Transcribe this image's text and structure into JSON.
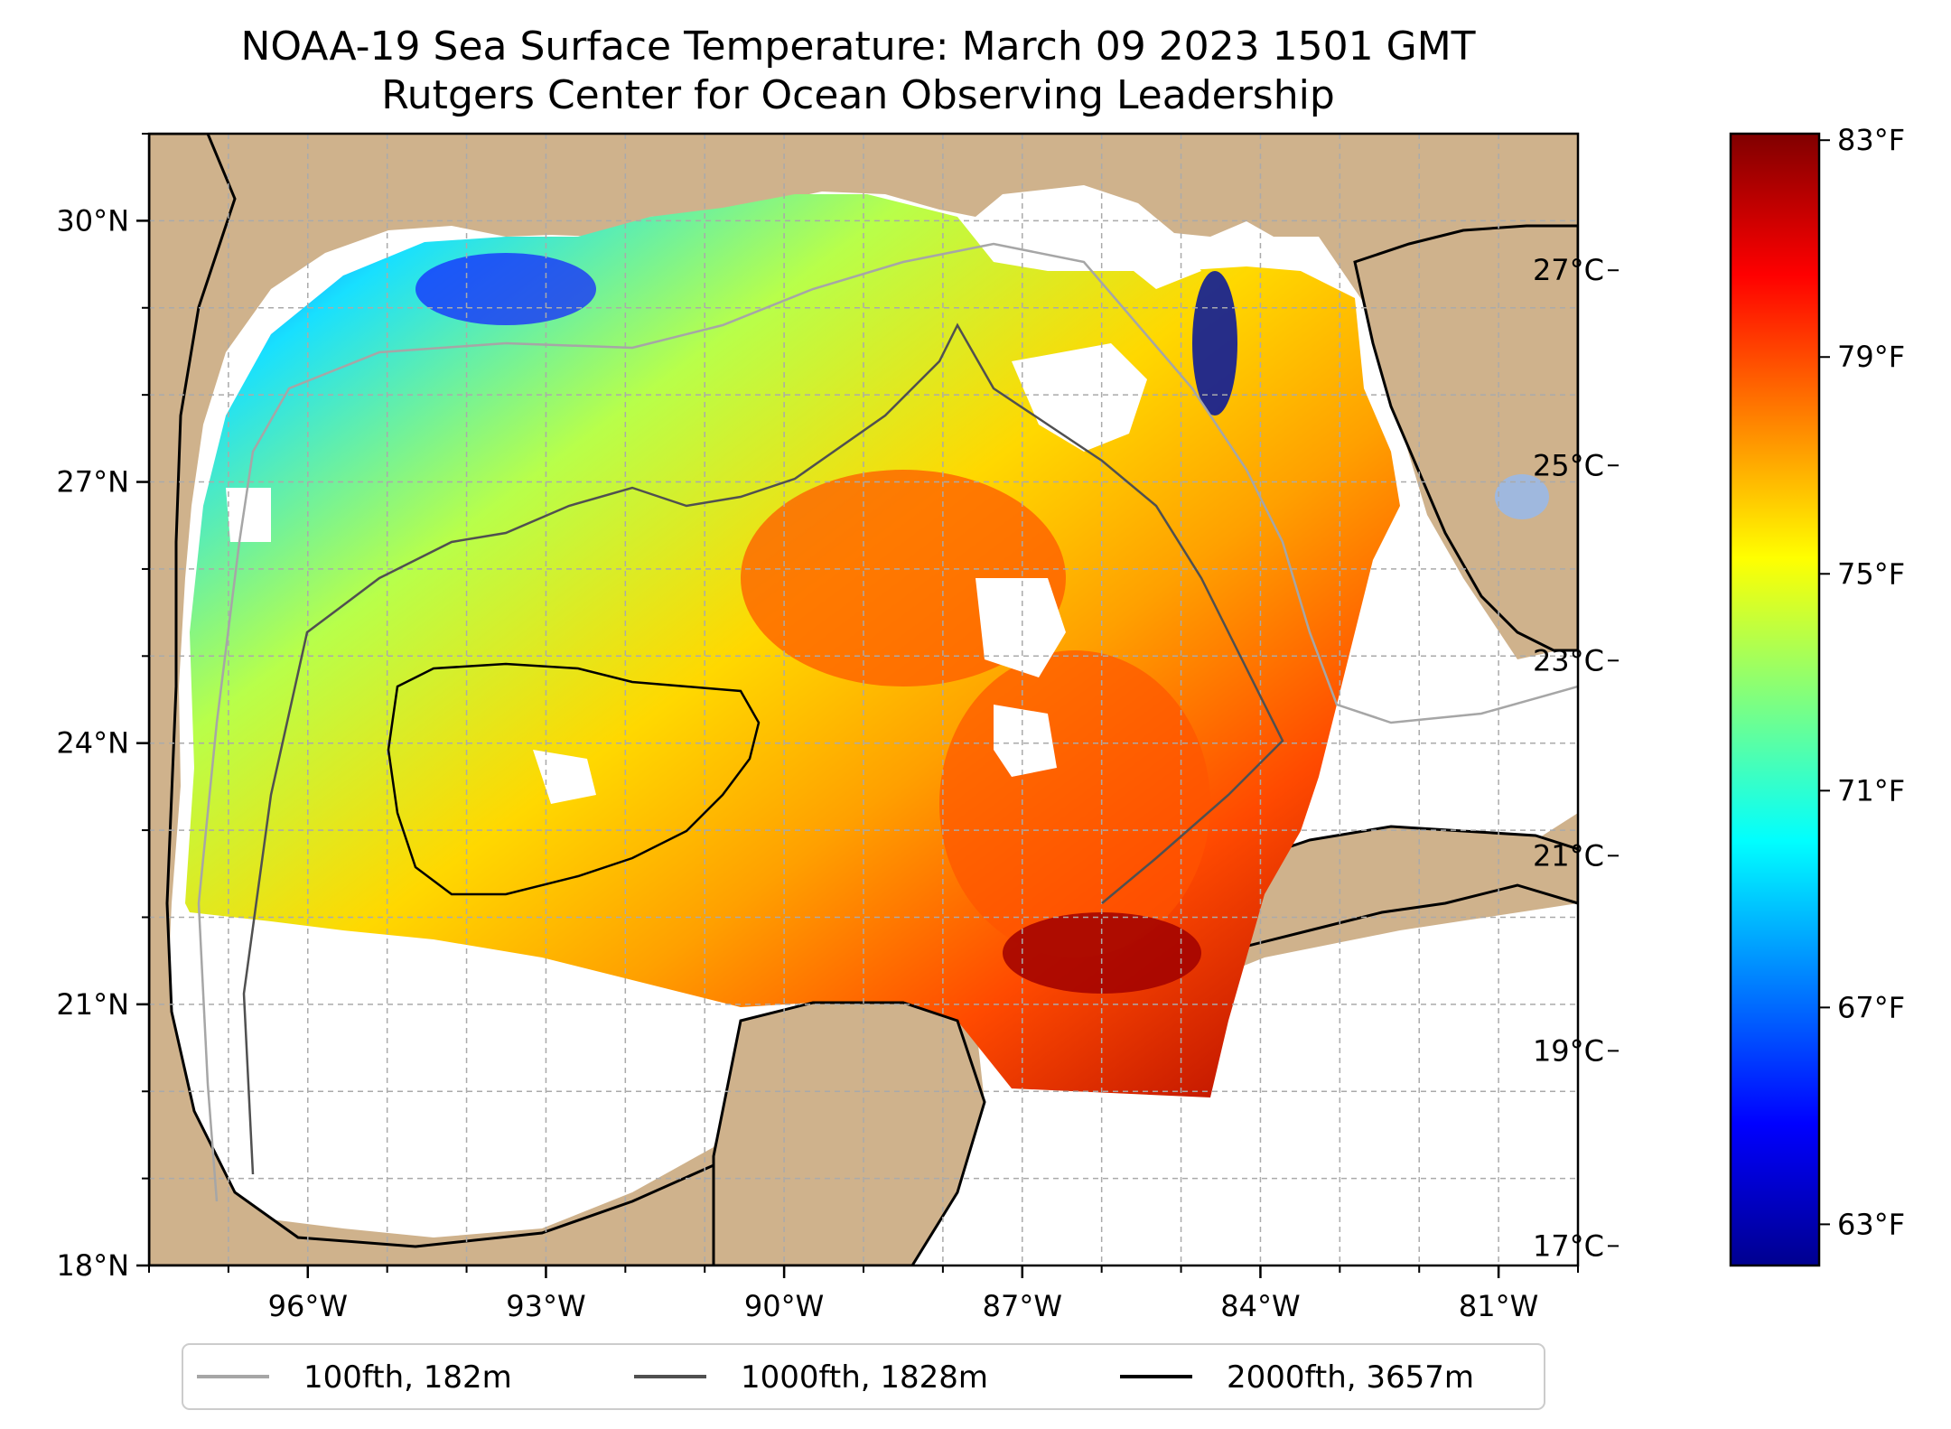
{
  "title": {
    "line1": "NOAA-19 Sea Surface Temperature: March 09 2023 1501 GMT",
    "line2": "Rutgers Center for Ocean Observing Leadership"
  },
  "map": {
    "lon_range": [
      -98,
      -80
    ],
    "lat_range": [
      18,
      31
    ],
    "lon_ticks": [
      {
        "value": -96,
        "label": "96°W"
      },
      {
        "value": -93,
        "label": "93°W"
      },
      {
        "value": -90,
        "label": "90°W"
      },
      {
        "value": -87,
        "label": "87°W"
      },
      {
        "value": -84,
        "label": "84°W"
      },
      {
        "value": -81,
        "label": "81°W"
      }
    ],
    "lat_ticks": [
      {
        "value": 30,
        "label": "30°N"
      },
      {
        "value": 27,
        "label": "27°N"
      },
      {
        "value": 24,
        "label": "24°N"
      },
      {
        "value": 21,
        "label": "21°N"
      },
      {
        "value": 18,
        "label": "18°N"
      }
    ],
    "grid": true,
    "colors": {
      "land": "#cfb28c",
      "lakes": "#9fb8de",
      "ocean_nodata": "#ffffff",
      "coastline": "#000000",
      "grid": "#aaaaaa"
    }
  },
  "colorbar": {
    "colormap": "jet",
    "celsius_range": [
      16.8,
      28.4
    ],
    "celsius_ticks": [
      {
        "value": 27,
        "label": "27°C"
      },
      {
        "value": 25,
        "label": "25°C"
      },
      {
        "value": 23,
        "label": "23°C"
      },
      {
        "value": 21,
        "label": "21°C"
      },
      {
        "value": 19,
        "label": "19°C"
      },
      {
        "value": 17,
        "label": "17°C"
      }
    ],
    "fahrenheit_ticks": [
      {
        "value": 83,
        "label": "83°F"
      },
      {
        "value": 79,
        "label": "79°F"
      },
      {
        "value": 75,
        "label": "75°F"
      },
      {
        "value": 71,
        "label": "71°F"
      },
      {
        "value": 67,
        "label": "67°F"
      },
      {
        "value": 63,
        "label": "63°F"
      }
    ]
  },
  "legend": {
    "position": "bottom-center",
    "items": [
      {
        "label": "100fth, 182m",
        "color": "#a6a6a6"
      },
      {
        "label": "1000fth, 1828m",
        "color": "#505050"
      },
      {
        "label": "2000fth, 3657m",
        "color": "#000000"
      }
    ]
  }
}
